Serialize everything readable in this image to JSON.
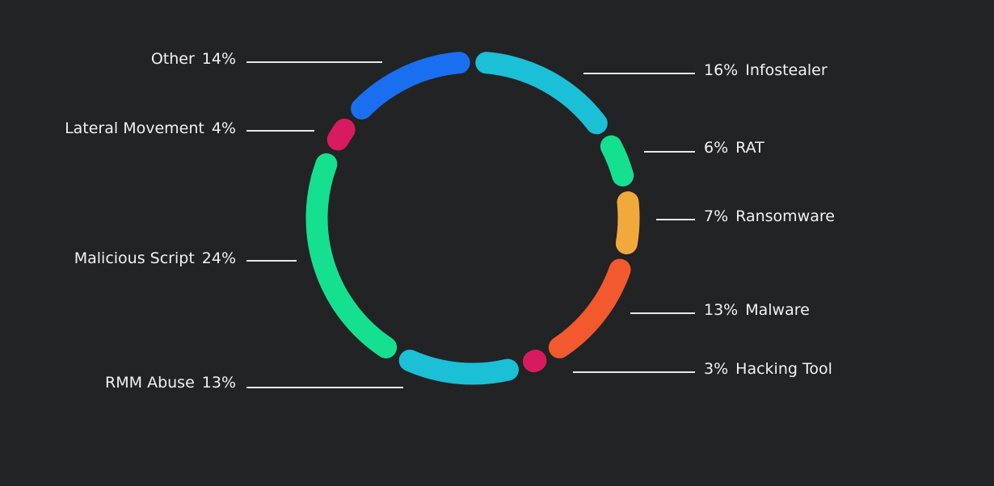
{
  "chart_data": {
    "type": "donut",
    "categories": [
      "Infostealer",
      "RAT",
      "Ransomware",
      "Malware",
      "Hacking Tool",
      "RMM Abuse",
      "Malicious Script",
      "Lateral Movement",
      "Other"
    ],
    "values": [
      16,
      6,
      7,
      13,
      3,
      13,
      24,
      4,
      14
    ],
    "value_labels": [
      "16%",
      "6%",
      "7%",
      "13%",
      "3%",
      "13%",
      "24%",
      "4%",
      "14%"
    ],
    "colors": [
      "#1bbfd6",
      "#14e08f",
      "#f2a93b",
      "#f2592f",
      "#d81b5e",
      "#1bbfd6",
      "#14e08f",
      "#d81b5e",
      "#1a6ff0"
    ]
  }
}
